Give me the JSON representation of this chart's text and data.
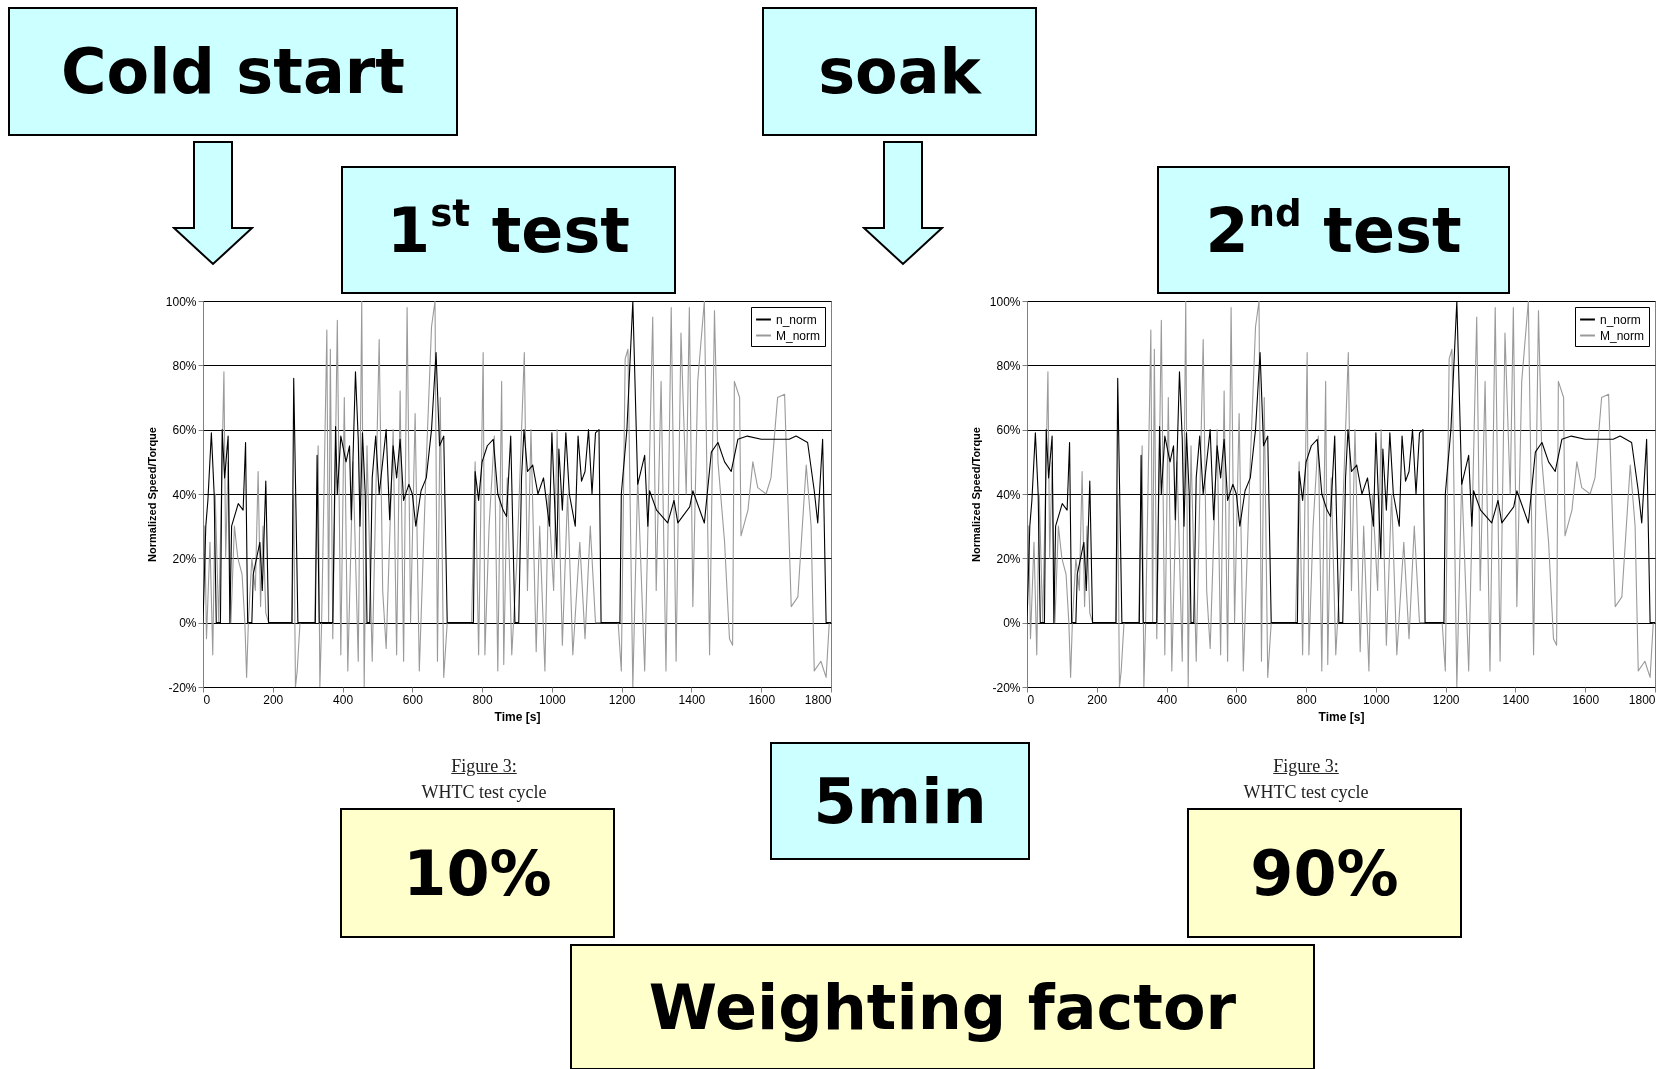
{
  "chart_data": [
    {
      "type": "line",
      "xlabel": "Time [s]",
      "ylabel": "Normalized Speed/Torque",
      "xlim": [
        0,
        1800
      ],
      "xticks": [
        0,
        200,
        400,
        600,
        800,
        1000,
        1200,
        1400,
        1600,
        1800
      ],
      "ylim": [
        -20,
        100
      ],
      "yticks": [
        {
          "value": -20,
          "label": "-20%"
        },
        {
          "value": 0,
          "label": "0%"
        },
        {
          "value": 20,
          "label": "20%"
        },
        {
          "value": 40,
          "label": "40%"
        },
        {
          "value": 60,
          "label": "60%"
        },
        {
          "value": 80,
          "label": "80%"
        },
        {
          "value": 100,
          "label": "100%"
        }
      ],
      "grid": "y",
      "legend": "top right",
      "annotations": [
        "Cold start",
        "1$^{st}$ test",
        "Figure 3:",
        "WHTC test cycle",
        "10%"
      ],
      "series": [
        {
          "name": "n_norm",
          "color": "#000000",
          "x": [
            0,
            8,
            14,
            24,
            32,
            38,
            50,
            55,
            62,
            72,
            77,
            82,
            101,
            115,
            122,
            128,
            140,
            144,
            163,
            170,
            180,
            188,
            255,
            260,
            272,
            322,
            327,
            333,
            372,
            380,
            385,
            395,
            410,
            420,
            425,
            437,
            445,
            450,
            457,
            465,
            470,
            478,
            485,
            495,
            505,
            515,
            525,
            535,
            545,
            555,
            565,
            575,
            590,
            600,
            610,
            625,
            640,
            655,
            668,
            678,
            690,
            700,
            775,
            780,
            790,
            800,
            815,
            832,
            845,
            860,
            870,
            882,
            894,
            905,
            913,
            920,
            930,
            945,
            960,
            976,
            993,
            1000,
            1014,
            1020,
            1030,
            1040,
            1050,
            1067,
            1075,
            1085,
            1095,
            1105,
            1115,
            1125,
            1135,
            1141,
            1195,
            1199,
            1215,
            1232,
            1246,
            1266,
            1275,
            1280,
            1300,
            1332,
            1350,
            1361,
            1395,
            1404,
            1437,
            1457,
            1476,
            1495,
            1514,
            1533,
            1560,
            1600,
            1640,
            1680,
            1700,
            1733,
            1752,
            1762,
            1776,
            1786,
            1800
          ],
          "values": [
            0,
            30,
            38,
            59,
            40,
            0,
            0,
            60,
            45,
            58,
            0,
            30,
            37,
            35,
            56,
            0,
            0,
            15,
            25,
            10,
            44,
            0,
            0,
            76,
            0,
            0,
            52,
            0,
            0,
            61,
            40,
            58,
            50,
            55,
            32,
            78,
            57,
            30,
            59,
            40,
            0,
            0,
            45,
            58,
            40,
            50,
            60,
            32,
            55,
            45,
            57,
            38,
            43,
            40,
            30,
            41,
            45,
            60,
            84,
            55,
            58,
            0,
            0,
            47,
            38,
            50,
            55,
            57,
            40,
            35,
            33,
            58,
            0,
            0,
            45,
            60,
            47,
            49,
            40,
            45,
            30,
            59,
            20,
            54,
            35,
            59,
            40,
            30,
            58,
            44,
            47,
            60,
            40,
            59,
            60,
            0,
            0,
            40,
            60,
            100,
            43,
            52,
            30,
            41,
            35,
            31,
            38,
            31,
            36,
            41,
            31,
            53,
            56,
            50,
            47,
            57,
            58,
            57,
            57,
            57,
            58,
            56,
            41,
            31,
            57,
            0,
            0
          ]
        },
        {
          "name": "M_norm",
          "color": "#9a9a9a",
          "x": [
            0,
            5,
            10,
            20,
            28,
            35,
            45,
            60,
            65,
            72,
            80,
            90,
            100,
            112,
            120,
            125,
            130,
            140,
            150,
            158,
            165,
            172,
            180,
            188,
            255,
            260,
            265,
            270,
            278,
            320,
            330,
            335,
            340,
            355,
            360,
            365,
            372,
            385,
            395,
            405,
            415,
            430,
            445,
            455,
            462,
            470,
            485,
            505,
            515,
            525,
            545,
            555,
            565,
            575,
            585,
            595,
            608,
            620,
            640,
            655,
            665,
            672,
            680,
            690,
            700,
            770,
            780,
            790,
            803,
            808,
            820,
            835,
            845,
            856,
            862,
            872,
            885,
            900,
            921,
            930,
            940,
            955,
            965,
            980,
            990,
            1005,
            1015,
            1030,
            1045,
            1060,
            1080,
            1095,
            1110,
            1125,
            1141,
            1190,
            1199,
            1210,
            1218,
            1232,
            1246,
            1266,
            1289,
            1299,
            1313,
            1327,
            1342,
            1356,
            1370,
            1385,
            1394,
            1404,
            1418,
            1437,
            1452,
            1466,
            1476,
            1495,
            1509,
            1518,
            1523,
            1538,
            1542,
            1562,
            1576,
            1590,
            1614,
            1628,
            1647,
            1667,
            1686,
            1705,
            1729,
            1743,
            1752,
            1771,
            1786,
            1795,
            1800
          ],
          "values": [
            0,
            30,
            -5,
            25,
            -10,
            40,
            0,
            78,
            20,
            50,
            0,
            30,
            20,
            15,
            0,
            -17,
            0,
            20,
            10,
            47,
            5,
            30,
            3,
            0,
            0,
            40,
            -20,
            -15,
            0,
            0,
            55,
            -20,
            0,
            91,
            0,
            85,
            -5,
            94,
            -10,
            70,
            -15,
            50,
            -12,
            100,
            -20,
            55,
            -12,
            88,
            10,
            -8,
            60,
            -10,
            72,
            -12,
            98,
            0,
            65,
            -15,
            50,
            92,
            100,
            -12,
            70,
            -17,
            0,
            0,
            50,
            -10,
            84,
            -10,
            30,
            58,
            -15,
            75,
            -13,
            45,
            -10,
            20,
            84,
            10,
            60,
            -9,
            30,
            -15,
            40,
            10,
            60,
            -7,
            40,
            -10,
            25,
            -5,
            30,
            0,
            0,
            0,
            -15,
            82,
            85,
            -20,
            45,
            -15,
            95,
            10,
            75,
            -15,
            98,
            -12,
            90,
            40,
            98,
            5,
            75,
            100,
            -10,
            97,
            50,
            25,
            -5,
            -7,
            75,
            70,
            27,
            35,
            50,
            42,
            40,
            45,
            70,
            71,
            5,
            8,
            49,
            30,
            -15,
            -12,
            -17,
            0,
            0
          ]
        }
      ]
    },
    {
      "type": "line",
      "xlabel": "Time [s]",
      "ylabel": "Normalized Speed/Torque",
      "xlim": [
        0,
        1800
      ],
      "xticks": [
        0,
        200,
        400,
        600,
        800,
        1000,
        1200,
        1400,
        1600,
        1800
      ],
      "ylim": [
        -20,
        100
      ],
      "yticks": [
        {
          "value": -20,
          "label": "-20%"
        },
        {
          "value": 0,
          "label": "0%"
        },
        {
          "value": 20,
          "label": "20%"
        },
        {
          "value": 40,
          "label": "40%"
        },
        {
          "value": 60,
          "label": "60%"
        },
        {
          "value": 80,
          "label": "80%"
        },
        {
          "value": 100,
          "label": "100%"
        }
      ],
      "grid": "y",
      "legend": "top right",
      "annotations": [
        "soak",
        "2$^{nd}$ test",
        "5min",
        "Figure 3:",
        "WHTC test cycle",
        "90%",
        "Weighting factor"
      ],
      "series": [
        {
          "name": "n_norm",
          "color": "#000000",
          "x": [
            0,
            8,
            14,
            24,
            32,
            38,
            50,
            55,
            62,
            72,
            77,
            82,
            101,
            115,
            122,
            128,
            140,
            144,
            163,
            170,
            180,
            188,
            255,
            260,
            272,
            322,
            327,
            333,
            372,
            380,
            385,
            395,
            410,
            420,
            425,
            437,
            445,
            450,
            457,
            465,
            470,
            478,
            485,
            495,
            505,
            515,
            525,
            535,
            545,
            555,
            565,
            575,
            590,
            600,
            610,
            625,
            640,
            655,
            668,
            678,
            690,
            700,
            775,
            780,
            790,
            800,
            815,
            832,
            845,
            860,
            870,
            882,
            894,
            905,
            913,
            920,
            930,
            945,
            960,
            976,
            993,
            1000,
            1014,
            1020,
            1030,
            1040,
            1050,
            1067,
            1075,
            1085,
            1095,
            1105,
            1115,
            1125,
            1135,
            1141,
            1195,
            1199,
            1215,
            1232,
            1246,
            1266,
            1275,
            1280,
            1300,
            1332,
            1350,
            1361,
            1395,
            1404,
            1437,
            1457,
            1476,
            1495,
            1514,
            1533,
            1560,
            1600,
            1640,
            1680,
            1700,
            1733,
            1752,
            1762,
            1776,
            1786,
            1800
          ],
          "values": [
            0,
            30,
            38,
            59,
            40,
            0,
            0,
            60,
            45,
            58,
            0,
            30,
            37,
            35,
            56,
            0,
            0,
            15,
            25,
            10,
            44,
            0,
            0,
            76,
            0,
            0,
            52,
            0,
            0,
            61,
            40,
            58,
            50,
            55,
            32,
            78,
            57,
            30,
            59,
            40,
            0,
            0,
            45,
            58,
            40,
            50,
            60,
            32,
            55,
            45,
            57,
            38,
            43,
            40,
            30,
            41,
            45,
            60,
            84,
            55,
            58,
            0,
            0,
            47,
            38,
            50,
            55,
            57,
            40,
            35,
            33,
            58,
            0,
            0,
            45,
            60,
            47,
            49,
            40,
            45,
            30,
            59,
            20,
            54,
            35,
            59,
            40,
            30,
            58,
            44,
            47,
            60,
            40,
            59,
            60,
            0,
            0,
            40,
            60,
            100,
            43,
            52,
            30,
            41,
            35,
            31,
            38,
            31,
            36,
            41,
            31,
            53,
            56,
            50,
            47,
            57,
            58,
            57,
            57,
            57,
            58,
            56,
            41,
            31,
            57,
            0,
            0
          ]
        },
        {
          "name": "M_norm",
          "color": "#9a9a9a",
          "x": [
            0,
            5,
            10,
            20,
            28,
            35,
            45,
            60,
            65,
            72,
            80,
            90,
            100,
            112,
            120,
            125,
            130,
            140,
            150,
            158,
            165,
            172,
            180,
            188,
            255,
            260,
            265,
            270,
            278,
            320,
            330,
            335,
            340,
            355,
            360,
            365,
            372,
            385,
            395,
            405,
            415,
            430,
            445,
            455,
            462,
            470,
            485,
            505,
            515,
            525,
            545,
            555,
            565,
            575,
            585,
            595,
            608,
            620,
            640,
            655,
            665,
            672,
            680,
            690,
            700,
            770,
            780,
            790,
            803,
            808,
            820,
            835,
            845,
            856,
            862,
            872,
            885,
            900,
            921,
            930,
            940,
            955,
            965,
            980,
            990,
            1005,
            1015,
            1030,
            1045,
            1060,
            1080,
            1095,
            1110,
            1125,
            1141,
            1190,
            1199,
            1210,
            1218,
            1232,
            1246,
            1266,
            1289,
            1299,
            1313,
            1327,
            1342,
            1356,
            1370,
            1385,
            1394,
            1404,
            1418,
            1437,
            1452,
            1466,
            1476,
            1495,
            1509,
            1518,
            1523,
            1538,
            1542,
            1562,
            1576,
            1590,
            1614,
            1628,
            1647,
            1667,
            1686,
            1705,
            1729,
            1743,
            1752,
            1771,
            1786,
            1795,
            1800
          ],
          "values": [
            0,
            30,
            -5,
            25,
            -10,
            40,
            0,
            78,
            20,
            50,
            0,
            30,
            20,
            15,
            0,
            -17,
            0,
            20,
            10,
            47,
            5,
            30,
            3,
            0,
            0,
            40,
            -20,
            -15,
            0,
            0,
            55,
            -20,
            0,
            91,
            0,
            85,
            -5,
            94,
            -10,
            70,
            -15,
            50,
            -12,
            100,
            -20,
            55,
            -12,
            88,
            10,
            -8,
            60,
            -10,
            72,
            -12,
            98,
            0,
            65,
            -15,
            50,
            92,
            100,
            -12,
            70,
            -17,
            0,
            0,
            50,
            -10,
            84,
            -10,
            30,
            58,
            -15,
            75,
            -13,
            45,
            -10,
            20,
            84,
            10,
            60,
            -9,
            30,
            -15,
            40,
            10,
            60,
            -7,
            40,
            -10,
            25,
            -5,
            30,
            0,
            0,
            0,
            -15,
            82,
            85,
            -20,
            45,
            -15,
            95,
            10,
            75,
            -15,
            98,
            -12,
            90,
            40,
            98,
            5,
            75,
            100,
            -10,
            97,
            50,
            25,
            -5,
            -7,
            75,
            70,
            27,
            35,
            50,
            42,
            40,
            45,
            70,
            71,
            5,
            8,
            49,
            30,
            -15,
            -12,
            -17,
            0,
            0
          ]
        }
      ]
    }
  ]
}
